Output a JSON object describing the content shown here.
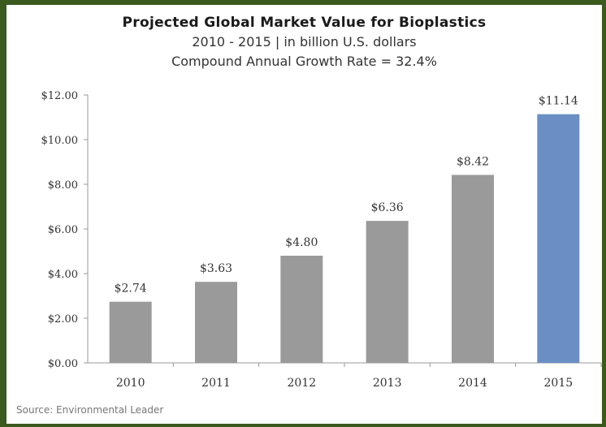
{
  "chart_data": {
    "type": "bar",
    "title": "Projected  Global Market Value for Bioplastics",
    "subtitle": "2010 - 2015 | in billion U.S. dollars",
    "subtitle2": "Compound Annual Growth Rate = 32.4%",
    "categories": [
      "2010",
      "2011",
      "2012",
      "2013",
      "2014",
      "2015"
    ],
    "values": [
      2.74,
      3.63,
      4.8,
      6.36,
      8.42,
      11.14
    ],
    "data_labels": [
      "$2.74",
      "$3.63",
      "$4.80",
      "$6.36",
      "$8.42",
      "$11.14"
    ],
    "y_ticks": [
      "$0.00",
      "$2.00",
      "$4.00",
      "$6.00",
      "$8.00",
      "$10.00",
      "$12.00"
    ],
    "ylim": [
      0,
      12
    ],
    "grid": false,
    "xlabel": "",
    "ylabel": "",
    "colors": {
      "default_bar": "#9a9a9a",
      "highlight_bar": "#6b8fc4",
      "axis": "#999999"
    },
    "highlight_index": 5
  },
  "source": "Source: Environmental Leader"
}
